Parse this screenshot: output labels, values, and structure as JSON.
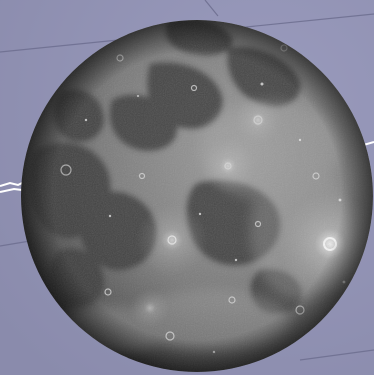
{
  "scene": {
    "subject": "moon",
    "colors": {
      "sky_background": "#8e8fb0",
      "sky_light": "#9a9bbd",
      "grid_line": "#6f7091",
      "horizon_line": "#ffffff",
      "moon_highlight": "#9c9c9c",
      "moon_midtone": "#6e6e6e",
      "moon_shadow": "#2a2a2a",
      "mare_dark": "#3a3a3a",
      "crater_bright": "#e8e8e8"
    },
    "icons": [
      "moon-disc",
      "tycho-crater",
      "grid-lines",
      "horizon-line"
    ]
  }
}
